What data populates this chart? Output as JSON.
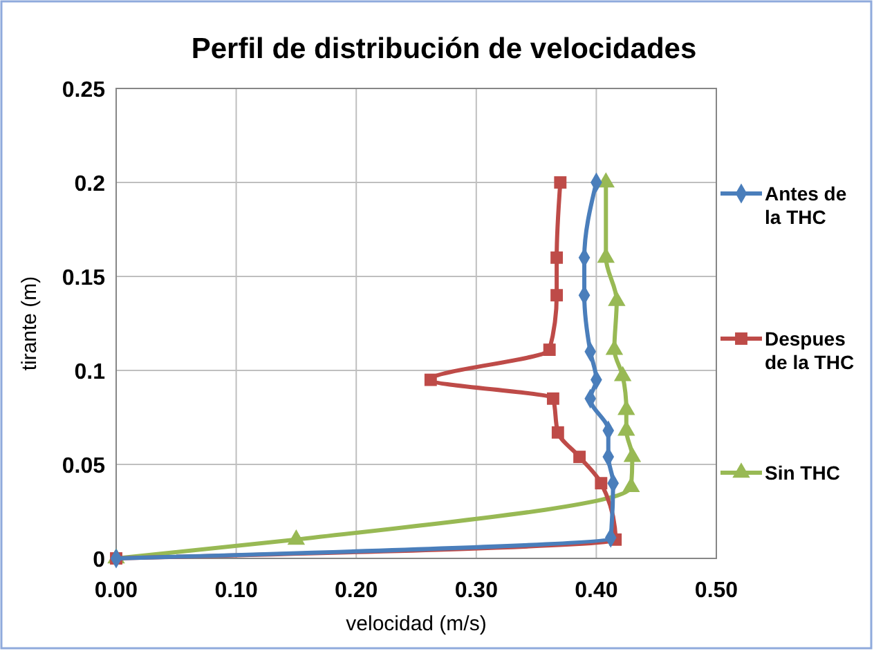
{
  "chart_data": {
    "type": "line",
    "title": "Perfil de distribución de velocidades",
    "xlabel": "velocidad (m/s)",
    "ylabel": "tirante (m)",
    "xlim": [
      0,
      0.5
    ],
    "xticks": [
      {
        "value": 0,
        "label": "0.00"
      },
      {
        "value": 0.1,
        "label": "0.10"
      },
      {
        "value": 0.2,
        "label": "0.20"
      },
      {
        "value": 0.3,
        "label": "0.30"
      },
      {
        "value": 0.4,
        "label": "0.40"
      },
      {
        "value": 0.5,
        "label": "0.50"
      }
    ],
    "ylim": [
      0,
      0.25
    ],
    "yticks": [
      0,
      0.05,
      0.1,
      0.15,
      0.2,
      0.25
    ],
    "grid": true,
    "legend": "right",
    "series": [
      {
        "name": "Antes de la THC",
        "color": "#4a7ebb",
        "marker": "diamond",
        "x": [
          0.4,
          0.39,
          0.39,
          0.395,
          0.4,
          0.395,
          0.41,
          0.41,
          0.414,
          0.412,
          0
        ],
        "values": [
          0.2,
          0.16,
          0.14,
          0.11,
          0.095,
          0.085,
          0.068,
          0.054,
          0.04,
          0.011,
          0
        ]
      },
      {
        "name": "Despues de la THC",
        "color": "#be4b48",
        "marker": "square",
        "x": [
          0.37,
          0.367,
          0.367,
          0.361,
          0.262,
          0.364,
          0.368,
          0.386,
          0.404,
          0.416,
          0
        ],
        "values": [
          0.2,
          0.16,
          0.14,
          0.111,
          0.095,
          0.085,
          0.067,
          0.054,
          0.04,
          0.01,
          0
        ]
      },
      {
        "name": "Sin THC",
        "color": "#98b954",
        "marker": "triangle",
        "x": [
          0.408,
          0.408,
          0.417,
          0.415,
          0.422,
          0.425,
          0.425,
          0.43,
          0.429,
          0.15,
          0
        ],
        "values": [
          0.2,
          0.16,
          0.137,
          0.111,
          0.097,
          0.079,
          0.068,
          0.054,
          0.038,
          0.01,
          0
        ]
      }
    ]
  }
}
